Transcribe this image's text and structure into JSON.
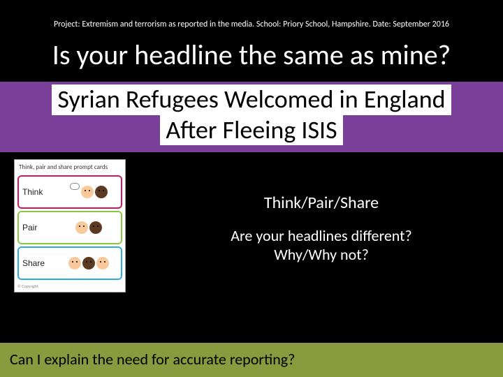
{
  "meta": {
    "project_line": "Project: Extremism and terrorism as reported in the media. School: Priory School, Hampshire. Date: September 2016"
  },
  "title": "Is your headline the same as mine?",
  "headline": {
    "line1": "Syrian Refugees Welcomed in England",
    "line2": "After Fleeing ISIS",
    "band_color": "#7a3f99",
    "text_bg": "#ffffff",
    "text_color": "#000000",
    "font_size": 36
  },
  "cards": {
    "caption": "Think, pair and share prompt cards",
    "rows": [
      {
        "label": "Think",
        "border_color": "#d4145a"
      },
      {
        "label": "Pair",
        "border_color": "#8cc63f"
      },
      {
        "label": "Share",
        "border_color": "#29abe2"
      }
    ],
    "footnote": "© Copyright"
  },
  "activity": {
    "heading": "Think/Pair/Share",
    "question_line1": "Are your headlines different?",
    "question_line2": "Why/Why not?"
  },
  "footer": {
    "text": "Can I explain the need for accurate reporting?",
    "bg_color": "#8a9a3f"
  },
  "colors": {
    "page_bg": "#000000",
    "text_light": "#ffffff"
  }
}
